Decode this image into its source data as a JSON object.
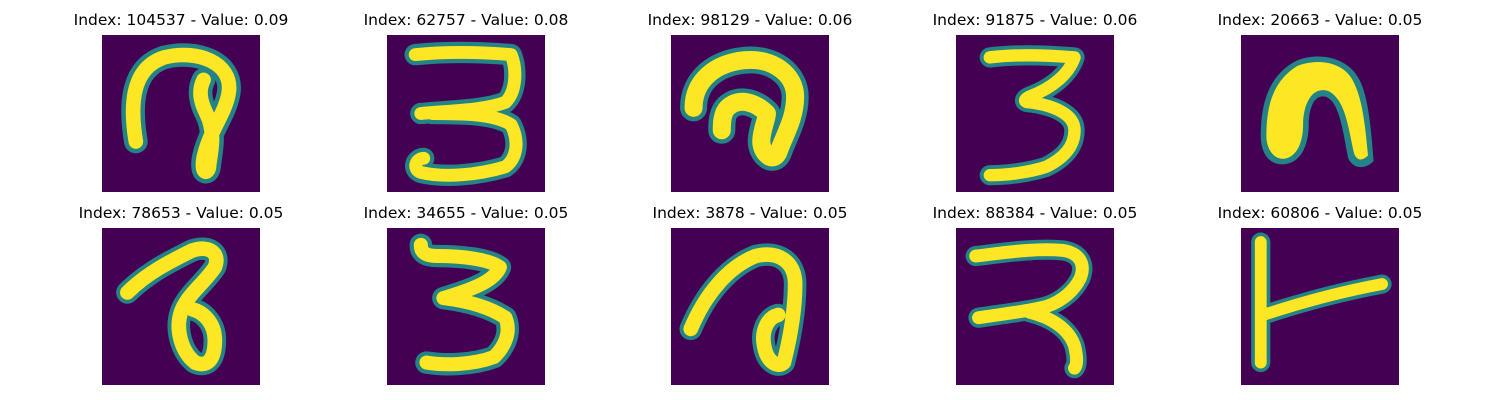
{
  "chart_data": {
    "type": "heatmap",
    "colormap": "viridis",
    "background_color": "#440154",
    "stroke_color": "#fde725",
    "edge_colors": [
      "#21918c",
      "#5ec962",
      "#3b528b"
    ],
    "grid": false,
    "axes_visible": false,
    "layout": {
      "rows": 2,
      "cols": 5
    },
    "panels": [
      {
        "title": "Index: 104537 - Value: 0.09",
        "index": 104537,
        "value": 0.09,
        "depicts": "curl-shaped handwritten glyph"
      },
      {
        "title": "Index: 62757 - Value: 0.08",
        "index": 62757,
        "value": 0.08,
        "depicts": "handwritten 3"
      },
      {
        "title": "Index: 98129 - Value: 0.06",
        "index": 98129,
        "value": 0.06,
        "depicts": "curl-shaped handwritten glyph"
      },
      {
        "title": "Index: 91875 - Value: 0.06",
        "index": 91875,
        "value": 0.06,
        "depicts": "handwritten 3"
      },
      {
        "title": "Index: 20663 - Value: 0.05",
        "index": 20663,
        "value": 0.05,
        "depicts": "filled arch-shaped glyph"
      },
      {
        "title": "Index: 78653 - Value: 0.05",
        "index": 78653,
        "value": 0.05,
        "depicts": "looped handwritten glyph"
      },
      {
        "title": "Index: 34655 - Value: 0.05",
        "index": 34655,
        "value": 0.05,
        "depicts": "handwritten 3"
      },
      {
        "title": "Index: 3878 - Value: 0.05",
        "index": 3878,
        "value": 0.05,
        "depicts": "looped handwritten glyph"
      },
      {
        "title": "Index: 88384 - Value: 0.05",
        "index": 88384,
        "value": 0.05,
        "depicts": "handwritten glyph resembling a 2"
      },
      {
        "title": "Index: 60806 - Value: 0.05",
        "index": 60806,
        "value": 0.05,
        "depicts": "T-shaped handwritten glyph"
      }
    ]
  }
}
